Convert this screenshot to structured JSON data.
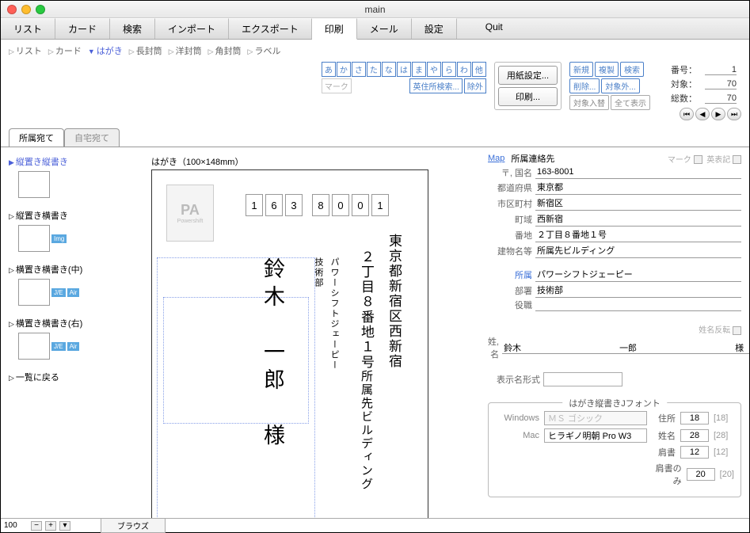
{
  "window": {
    "title": "main"
  },
  "main_tabs": [
    "リスト",
    "カード",
    "検索",
    "インポート",
    "エクスポート",
    "印刷",
    "メール",
    "設定"
  ],
  "main_tabs_active": 5,
  "quit_label": "Quit",
  "sub_tabs": [
    "リスト",
    "カード",
    "はがき",
    "長封筒",
    "洋封筒",
    "角封筒",
    "ラベル"
  ],
  "sub_tabs_active": 2,
  "kana": [
    "あ",
    "か",
    "さ",
    "た",
    "な",
    "は",
    "ま",
    "や",
    "ら",
    "わ",
    "他"
  ],
  "kana_row2_left": "マーク",
  "kana_row2_mid": "英住所検索...",
  "kana_row2_right": "除外",
  "page_setup_btn": "用紙設定...",
  "print_btn": "印刷...",
  "action_btns_r1": [
    "新規",
    "複製",
    "検索"
  ],
  "action_btns_r2": [
    "削除...",
    "対象外..."
  ],
  "action_btns_r3": [
    "対象入替",
    "全て表示"
  ],
  "counters": {
    "bangou_label": "番号：",
    "bangou": "1",
    "taishou_label": "対象：",
    "taishou": "70",
    "sousuu_label": "総数：",
    "sousuu": "70"
  },
  "dest_tabs": [
    "所属宛て",
    "自宅宛て"
  ],
  "dest_active": 0,
  "layouts": [
    {
      "label": "縦置き縦書き",
      "active": true,
      "badges": []
    },
    {
      "label": "縦置き横書き",
      "active": false,
      "badges": [
        "Img"
      ]
    },
    {
      "label": "横置き横書き(中)",
      "active": false,
      "badges": [
        "J/E",
        "Air"
      ]
    },
    {
      "label": "横置き横書き(右)",
      "active": false,
      "badges": [
        "J/E",
        "Air"
      ]
    },
    {
      "label": "一覧に戻る",
      "active": false,
      "badges": []
    }
  ],
  "postcard": {
    "size_label": "はがき（100×148mm）",
    "stamp_pa": "PA",
    "stamp_ps": "Powershift",
    "zip": [
      "1",
      "6",
      "3",
      "8",
      "0",
      "0",
      "1"
    ],
    "addr_line1": "東京都新宿区西新宿",
    "addr_line2": "２丁目８番地１号",
    "addr_line3": "所属先ビルディング",
    "affil1": "パワーシフトジェーピー",
    "affil2": "技術部",
    "name": "鈴木　一郎　様"
  },
  "right": {
    "map_link": "Map",
    "section": "所属連絡先",
    "mark_label": "マーク",
    "eihyouki_label": "英表記",
    "fields": {
      "zip_label": "〒, 国名",
      "zip": "163-8001",
      "pref_label": "都道府県",
      "pref": "東京都",
      "city_label": "市区町村",
      "city": "新宿区",
      "town_label": "町域",
      "town": "西新宿",
      "banchi_label": "番地",
      "banchi": "２丁目８番地１号",
      "bldg_label": "建物名等",
      "bldg": "所属先ビルディング",
      "shozoku_label": "所属",
      "shozoku": "パワーシフトジェーピー",
      "busho_label": "部署",
      "busho": "技術部",
      "yakushoku_label": "役職",
      "yakushoku": ""
    },
    "name_reverse_label": "姓名反転",
    "name_label": "姓, 名",
    "sei": "鈴木",
    "mei": "一郎",
    "sama": "様",
    "hyoujimei_label": "表示名形式",
    "hyoujimei": "",
    "font_group_title": "はがき縦書きJフォント",
    "font_rows": {
      "win_label": "Windows",
      "win_font": "ＭＳ ゴシック",
      "mac_label": "Mac",
      "mac_font": "ヒラギノ明朝 Pro W3",
      "juusho_label": "住所",
      "juusho_sz": "18",
      "juusho_ref": "[18]",
      "seimei_label": "姓名",
      "seimei_sz": "28",
      "seimei_ref": "[28]",
      "kata_label": "肩書",
      "kata_sz": "12",
      "kata_ref": "[12]",
      "kataonly_label": "肩書のみ",
      "kataonly_sz": "20",
      "kataonly_ref": "[20]"
    }
  },
  "status": {
    "zoom": "100",
    "browse": "ブラウズ"
  }
}
